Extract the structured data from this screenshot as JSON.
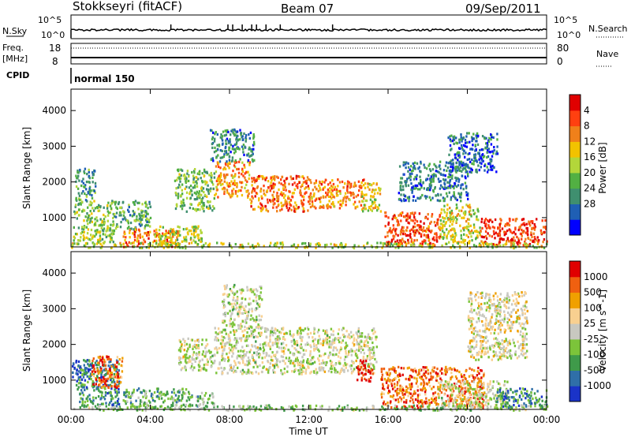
{
  "header": {
    "station": "Stokkseyri (fitACF)",
    "beam": "Beam 07",
    "date": "09/Sep/2011"
  },
  "top_strip": {
    "nsky_label": "N.Sky",
    "nsearch_label": "N.Search",
    "nsky_ticks": [
      "10^5",
      "10^0"
    ],
    "nsearch_ticks": [
      "10^5",
      "10^0"
    ],
    "freq_label": "Freq.",
    "freq_unit": "[MHz]",
    "freq_ticks": [
      "18",
      "8"
    ],
    "nave_label": "Nave",
    "nave_ticks": [
      "80",
      "0"
    ],
    "cpid_label": "CPID",
    "cpid_value": "normal 150"
  },
  "x_axis": {
    "label": "Time UT",
    "ticks": [
      "00:00",
      "04:00",
      "08:00",
      "12:00",
      "16:00",
      "20:00",
      "00:00"
    ]
  },
  "chart_data": [
    {
      "type": "heatmap",
      "quantity": "Power",
      "ylabel": "Slant Range [km]",
      "ylim": [
        180,
        4600
      ],
      "yticks": [
        "1000",
        "2000",
        "3000",
        "4000"
      ],
      "xlim_hours": [
        0,
        24
      ],
      "colorbar": {
        "label": "Power [dB]",
        "ticks": [
          "4",
          "8",
          "12",
          "16",
          "20",
          "24",
          "28"
        ],
        "colors": [
          "#0000ff",
          "#1f5fb4",
          "#3f8f6f",
          "#52b043",
          "#b3d63a",
          "#f2c200",
          "#f0801a",
          "#ff4010",
          "#e00000"
        ]
      },
      "regions": [
        {
          "t0": 0.1,
          "t1": 2.2,
          "r0": 300,
          "r1": 1500,
          "level": 0.45
        },
        {
          "t0": 0.2,
          "t1": 1.2,
          "r0": 1500,
          "r1": 2400,
          "level": 0.3
        },
        {
          "t0": 2.2,
          "t1": 4.0,
          "r0": 700,
          "r1": 1500,
          "level": 0.35
        },
        {
          "t0": 2.6,
          "t1": 5.4,
          "r0": 200,
          "r1": 700,
          "level": 0.75
        },
        {
          "t0": 4.2,
          "t1": 6.6,
          "r0": 300,
          "r1": 800,
          "level": 0.5
        },
        {
          "t0": 5.2,
          "t1": 7.2,
          "r0": 1200,
          "r1": 2400,
          "level": 0.4
        },
        {
          "t0": 7.2,
          "t1": 9.0,
          "r0": 1600,
          "r1": 2600,
          "level": 0.7
        },
        {
          "t0": 9.0,
          "t1": 12.0,
          "r0": 1200,
          "r1": 2200,
          "level": 0.75
        },
        {
          "t0": 12.0,
          "t1": 14.8,
          "r0": 1300,
          "r1": 2100,
          "level": 0.72
        },
        {
          "t0": 14.6,
          "t1": 15.6,
          "r0": 1200,
          "r1": 2000,
          "level": 0.55
        },
        {
          "t0": 7.0,
          "t1": 9.2,
          "r0": 2600,
          "r1": 3500,
          "level": 0.25
        },
        {
          "t0": 15.8,
          "t1": 18.6,
          "r0": 250,
          "r1": 1200,
          "level": 0.82
        },
        {
          "t0": 18.6,
          "t1": 20.6,
          "r0": 300,
          "r1": 1400,
          "level": 0.55
        },
        {
          "t0": 20.6,
          "t1": 24.0,
          "r0": 250,
          "r1": 1000,
          "level": 0.85
        },
        {
          "t0": 16.5,
          "t1": 20.0,
          "r0": 1500,
          "r1": 2600,
          "level": 0.25
        },
        {
          "t0": 19.0,
          "t1": 21.5,
          "r0": 2300,
          "r1": 3400,
          "level": 0.2
        },
        {
          "t0": 0.0,
          "t1": 24.0,
          "r0": 180,
          "r1": 330,
          "level": 0.5
        }
      ]
    },
    {
      "type": "heatmap",
      "quantity": "Velocity",
      "ylabel": "Slant Range [km]",
      "ylim": [
        180,
        4600
      ],
      "yticks": [
        "1000",
        "2000",
        "3000",
        "4000"
      ],
      "xlim_hours": [
        0,
        24
      ],
      "colorbar": {
        "label": "Velocity [m s^-1]",
        "ticks": [
          "1000",
          "500",
          "100",
          "25",
          "-25",
          "-100",
          "-500",
          "-1000"
        ],
        "colors": [
          "#1a33c8",
          "#2f6fa8",
          "#3f9a4a",
          "#7cc43a",
          "#c8c8c0",
          "#f8d090",
          "#f0a000",
          "#f06010",
          "#e00000"
        ]
      },
      "regions": [
        {
          "t0": 0.0,
          "t1": 1.0,
          "r0": 1100,
          "r1": 1500,
          "level": 0.05
        },
        {
          "t0": 0.2,
          "t1": 2.4,
          "r0": 300,
          "r1": 1600,
          "level": 0.22
        },
        {
          "t0": 1.0,
          "t1": 2.6,
          "r0": 800,
          "r1": 1700,
          "level": 0.82
        },
        {
          "t0": 2.6,
          "t1": 5.8,
          "r0": 250,
          "r1": 800,
          "level": 0.32
        },
        {
          "t0": 5.8,
          "t1": 7.2,
          "r0": 300,
          "r1": 700,
          "level": 0.38
        },
        {
          "t0": 5.4,
          "t1": 7.2,
          "r0": 1300,
          "r1": 2200,
          "level": 0.5
        },
        {
          "t0": 7.2,
          "t1": 15.4,
          "r0": 1200,
          "r1": 2500,
          "level": 0.5
        },
        {
          "t0": 7.6,
          "t1": 9.6,
          "r0": 2500,
          "r1": 3700,
          "level": 0.48
        },
        {
          "t0": 14.4,
          "t1": 15.2,
          "r0": 1000,
          "r1": 1600,
          "level": 0.95
        },
        {
          "t0": 15.6,
          "t1": 20.8,
          "r0": 250,
          "r1": 1400,
          "level": 0.8
        },
        {
          "t0": 18.5,
          "t1": 22.0,
          "r0": 250,
          "r1": 1000,
          "level": 0.5
        },
        {
          "t0": 21.4,
          "t1": 24.0,
          "r0": 250,
          "r1": 800,
          "level": 0.25
        },
        {
          "t0": 20.0,
          "t1": 23.0,
          "r0": 1600,
          "r1": 3500,
          "level": 0.55
        },
        {
          "t0": 0.0,
          "t1": 24.0,
          "r0": 180,
          "r1": 330,
          "level": 0.4
        }
      ]
    }
  ]
}
